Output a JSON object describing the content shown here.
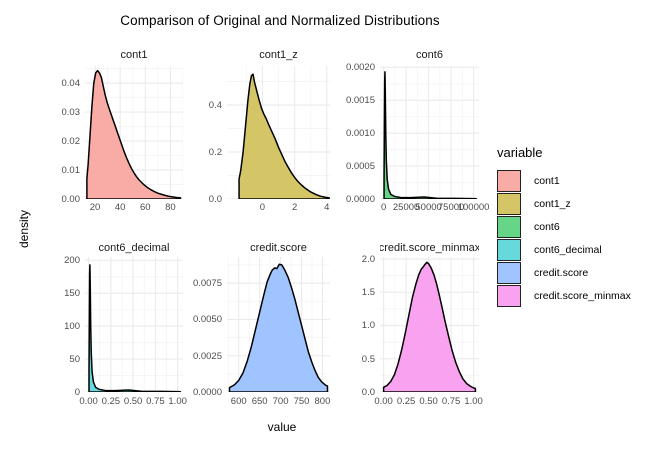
{
  "title": "Comparison of Original and Normalized Distributions",
  "axes": {
    "x_title": "value",
    "y_title": "density"
  },
  "legend": {
    "title": "variable",
    "entries": [
      {
        "label": "cont1",
        "color": "#F9ACA6"
      },
      {
        "label": "cont1_z",
        "color": "#D4C566"
      },
      {
        "label": "cont6",
        "color": "#66D587"
      },
      {
        "label": "cont6_decimal",
        "color": "#66D9DC"
      },
      {
        "label": "credit.score",
        "color": "#A0C4FF"
      },
      {
        "label": "credit.score_minmax",
        "color": "#F9A2F0"
      }
    ]
  },
  "style": {
    "curve_stroke": "#000000",
    "grid_major": "#ECECEC",
    "grid_minor": "#F5F5F5",
    "tick_label_color": "#4d4d4d"
  },
  "chart_data": {
    "type": "area",
    "subtype": "faceted-density",
    "title": "Comparison of Original and Normalized Distributions",
    "xlabel": "value",
    "ylabel": "density",
    "legend_position": "right",
    "grid": true,
    "facets": [
      {
        "title": "cont1",
        "fill": "#F9ACA6",
        "xlim": [
          12,
          90
        ],
        "ylim": [
          0,
          0.0459
        ],
        "x_ticks": [
          {
            "v": 20,
            "label": "20"
          },
          {
            "v": 40,
            "label": "40"
          },
          {
            "v": 60,
            "label": "60"
          },
          {
            "v": 80,
            "label": "80"
          }
        ],
        "y_ticks": [
          {
            "v": 0,
            "label": "0.00"
          },
          {
            "v": 0.01,
            "label": "0.01"
          },
          {
            "v": 0.02,
            "label": "0.02"
          },
          {
            "v": 0.03,
            "label": "0.03"
          },
          {
            "v": 0.04,
            "label": "0.04"
          }
        ],
        "points": [
          [
            13.5,
            0.007
          ],
          [
            14.5,
            0.012
          ],
          [
            16,
            0.022
          ],
          [
            17.5,
            0.032
          ],
          [
            19,
            0.04
          ],
          [
            20.5,
            0.0435
          ],
          [
            22,
            0.0443
          ],
          [
            23.5,
            0.0435
          ],
          [
            25,
            0.042
          ],
          [
            26.5,
            0.039
          ],
          [
            28,
            0.036
          ],
          [
            29.5,
            0.0335
          ],
          [
            31,
            0.0315
          ],
          [
            33,
            0.029
          ],
          [
            35,
            0.0265
          ],
          [
            37,
            0.024
          ],
          [
            39,
            0.0215
          ],
          [
            41,
            0.019
          ],
          [
            43,
            0.0165
          ],
          [
            45,
            0.0143
          ],
          [
            47,
            0.0123
          ],
          [
            49,
            0.0105
          ],
          [
            51,
            0.009
          ],
          [
            53,
            0.0077
          ],
          [
            55,
            0.0066
          ],
          [
            58,
            0.0053
          ],
          [
            61,
            0.0042
          ],
          [
            64,
            0.0033
          ],
          [
            67,
            0.0026
          ],
          [
            70,
            0.002
          ],
          [
            73,
            0.0016
          ],
          [
            76,
            0.0012
          ],
          [
            79,
            0.0009
          ],
          [
            82,
            0.0007
          ],
          [
            85,
            0.0005
          ],
          [
            88,
            0.0004
          ]
        ]
      },
      {
        "title": "cont1_z",
        "fill": "#D4C566",
        "xlim": [
          -2.2,
          4.2
        ],
        "ylim": [
          0,
          0.566
        ],
        "x_ticks": [
          {
            "v": 0,
            "label": "0"
          },
          {
            "v": 2,
            "label": "2"
          },
          {
            "v": 4,
            "label": "4"
          }
        ],
        "y_ticks": [
          {
            "v": 0,
            "label": "0.0"
          },
          {
            "v": 0.2,
            "label": "0.2"
          },
          {
            "v": 0.4,
            "label": "0.4"
          }
        ],
        "points": [
          [
            -1.45,
            0.085
          ],
          [
            -1.35,
            0.12
          ],
          [
            -1.2,
            0.2
          ],
          [
            -1.05,
            0.31
          ],
          [
            -0.9,
            0.42
          ],
          [
            -0.78,
            0.49
          ],
          [
            -0.68,
            0.525
          ],
          [
            -0.58,
            0.531
          ],
          [
            -0.5,
            0.5
          ],
          [
            -0.35,
            0.46
          ],
          [
            -0.2,
            0.42
          ],
          [
            -0.05,
            0.385
          ],
          [
            0.1,
            0.36
          ],
          [
            0.25,
            0.34
          ],
          [
            0.4,
            0.315
          ],
          [
            0.6,
            0.285
          ],
          [
            0.8,
            0.255
          ],
          [
            1.0,
            0.22
          ],
          [
            1.2,
            0.19
          ],
          [
            1.4,
            0.16
          ],
          [
            1.6,
            0.135
          ],
          [
            1.8,
            0.112
          ],
          [
            2.0,
            0.092
          ],
          [
            2.2,
            0.075
          ],
          [
            2.45,
            0.058
          ],
          [
            2.7,
            0.044
          ],
          [
            3.0,
            0.03
          ],
          [
            3.3,
            0.02
          ],
          [
            3.6,
            0.012
          ],
          [
            3.9,
            0.0075
          ],
          [
            4.15,
            0.005
          ]
        ]
      },
      {
        "title": "cont6",
        "fill": "#66D587",
        "xlim": [
          -4000,
          106000
        ],
        "ylim": [
          0,
          0.00202
        ],
        "x_ticks": [
          {
            "v": 0,
            "label": "0"
          },
          {
            "v": 25000,
            "label": "25000"
          },
          {
            "v": 50000,
            "label": "50000"
          },
          {
            "v": 75000,
            "label": "75000"
          },
          {
            "v": 100000,
            "label": "100000"
          }
        ],
        "y_ticks": [
          {
            "v": 0,
            "label": "0.0000"
          },
          {
            "v": 0.0005,
            "label": "0.0005"
          },
          {
            "v": 0.001,
            "label": "0.0010"
          },
          {
            "v": 0.0015,
            "label": "0.0015"
          },
          {
            "v": 0.002,
            "label": "0.0020"
          }
        ],
        "points": [
          [
            500,
            0.0003
          ],
          [
            900,
            0.0012
          ],
          [
            1200,
            0.0018
          ],
          [
            1500,
            0.00193
          ],
          [
            1900,
            0.0016
          ],
          [
            2400,
            0.001
          ],
          [
            3000,
            0.0006
          ],
          [
            4000,
            0.0003
          ],
          [
            5500,
            0.00015
          ],
          [
            8000,
            7e-05
          ],
          [
            12000,
            4e-05
          ],
          [
            20000,
            2e-05
          ],
          [
            30000,
            2e-05
          ],
          [
            45000,
            3e-05
          ],
          [
            60000,
            1e-05
          ],
          [
            80000,
            1e-05
          ],
          [
            100000,
            5e-06
          ],
          [
            103000,
            3e-06
          ]
        ]
      },
      {
        "title": "cont6_decimal",
        "fill": "#66D9DC",
        "xlim": [
          -0.04,
          1.06
        ],
        "ylim": [
          0,
          205
        ],
        "x_ticks": [
          {
            "v": 0,
            "label": "0.00"
          },
          {
            "v": 0.25,
            "label": "0.25"
          },
          {
            "v": 0.5,
            "label": "0.50"
          },
          {
            "v": 0.75,
            "label": "0.75"
          },
          {
            "v": 1.0,
            "label": "1.00"
          }
        ],
        "y_ticks": [
          {
            "v": 0,
            "label": "0"
          },
          {
            "v": 50,
            "label": "50"
          },
          {
            "v": 100,
            "label": "100"
          },
          {
            "v": 150,
            "label": "150"
          },
          {
            "v": 200,
            "label": "200"
          }
        ],
        "points": [
          [
            0.005,
            30
          ],
          [
            0.009,
            120
          ],
          [
            0.012,
            180
          ],
          [
            0.015,
            193
          ],
          [
            0.019,
            160
          ],
          [
            0.024,
            100
          ],
          [
            0.03,
            60
          ],
          [
            0.04,
            30
          ],
          [
            0.055,
            15
          ],
          [
            0.08,
            7
          ],
          [
            0.12,
            4
          ],
          [
            0.2,
            2
          ],
          [
            0.3,
            2
          ],
          [
            0.45,
            3
          ],
          [
            0.6,
            1
          ],
          [
            0.8,
            1
          ],
          [
            1.0,
            0.5
          ],
          [
            1.03,
            0.3
          ]
        ]
      },
      {
        "title": "credit.score",
        "fill": "#A0C4FF",
        "xlim": [
          572,
          818
        ],
        "ylim": [
          0,
          0.0093
        ],
        "x_ticks": [
          {
            "v": 600,
            "label": "600"
          },
          {
            "v": 650,
            "label": "650"
          },
          {
            "v": 700,
            "label": "700"
          },
          {
            "v": 750,
            "label": "750"
          },
          {
            "v": 800,
            "label": "800"
          }
        ],
        "y_ticks": [
          {
            "v": 0,
            "label": "0.0000"
          },
          {
            "v": 0.0025,
            "label": "0.0025"
          },
          {
            "v": 0.005,
            "label": "0.0050"
          },
          {
            "v": 0.0075,
            "label": "0.0075"
          }
        ],
        "points": [
          [
            578,
            0.0003
          ],
          [
            590,
            0.0005
          ],
          [
            600,
            0.0008
          ],
          [
            610,
            0.0013
          ],
          [
            620,
            0.0021
          ],
          [
            630,
            0.0031
          ],
          [
            640,
            0.0043
          ],
          [
            650,
            0.0055
          ],
          [
            660,
            0.0067
          ],
          [
            668,
            0.0076
          ],
          [
            675,
            0.0081
          ],
          [
            680,
            0.0084
          ],
          [
            686,
            0.00855
          ],
          [
            691,
            0.0085
          ],
          [
            697,
            0.0088
          ],
          [
            703,
            0.00875
          ],
          [
            710,
            0.0084
          ],
          [
            718,
            0.0079
          ],
          [
            726,
            0.0072
          ],
          [
            734,
            0.0064
          ],
          [
            742,
            0.0055
          ],
          [
            750,
            0.0046
          ],
          [
            758,
            0.0037
          ],
          [
            766,
            0.0028
          ],
          [
            774,
            0.0021
          ],
          [
            782,
            0.0015
          ],
          [
            790,
            0.001
          ],
          [
            798,
            0.0007
          ],
          [
            806,
            0.0005
          ],
          [
            812,
            0.0004
          ]
        ]
      },
      {
        "title": "credit.score_minmax",
        "fill": "#F9A2F0",
        "xlim": [
          -0.04,
          1.06
        ],
        "ylim": [
          0,
          2.03
        ],
        "x_ticks": [
          {
            "v": 0,
            "label": "0.00"
          },
          {
            "v": 0.25,
            "label": "0.25"
          },
          {
            "v": 0.5,
            "label": "0.50"
          },
          {
            "v": 0.75,
            "label": "0.75"
          },
          {
            "v": 1.0,
            "label": "1.00"
          }
        ],
        "y_ticks": [
          {
            "v": 0,
            "label": "0.0"
          },
          {
            "v": 0.5,
            "label": "0.5"
          },
          {
            "v": 1.0,
            "label": "1.0"
          },
          {
            "v": 1.5,
            "label": "1.5"
          },
          {
            "v": 2.0,
            "label": "2.0"
          }
        ],
        "points": [
          [
            0.0,
            0.07
          ],
          [
            0.04,
            0.1
          ],
          [
            0.08,
            0.16
          ],
          [
            0.12,
            0.26
          ],
          [
            0.16,
            0.42
          ],
          [
            0.2,
            0.63
          ],
          [
            0.24,
            0.88
          ],
          [
            0.28,
            1.15
          ],
          [
            0.32,
            1.42
          ],
          [
            0.36,
            1.63
          ],
          [
            0.39,
            1.76
          ],
          [
            0.42,
            1.85
          ],
          [
            0.44,
            1.88
          ],
          [
            0.46,
            1.92
          ],
          [
            0.48,
            1.95
          ],
          [
            0.5,
            1.93
          ],
          [
            0.53,
            1.86
          ],
          [
            0.56,
            1.76
          ],
          [
            0.59,
            1.62
          ],
          [
            0.62,
            1.45
          ],
          [
            0.65,
            1.27
          ],
          [
            0.68,
            1.08
          ],
          [
            0.72,
            0.85
          ],
          [
            0.76,
            0.63
          ],
          [
            0.8,
            0.45
          ],
          [
            0.84,
            0.31
          ],
          [
            0.88,
            0.2
          ],
          [
            0.92,
            0.13
          ],
          [
            0.96,
            0.09
          ],
          [
            1.0,
            0.06
          ],
          [
            1.02,
            0.055
          ]
        ]
      }
    ]
  }
}
